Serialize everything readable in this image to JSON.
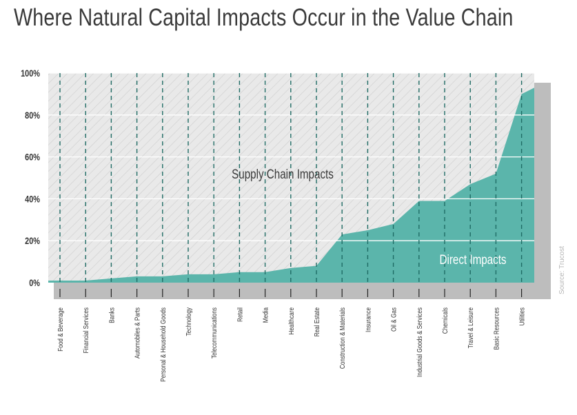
{
  "title": "Where Natural Capital Impacts Occur in the Value Chain",
  "source": "Source: Trucost",
  "colors": {
    "direct": "#5bb5ab",
    "supply": "#e8e8e8",
    "frame": "#bdbdbd",
    "dashed": "#1f6b64"
  },
  "chart_data": {
    "type": "area",
    "title": "Where Natural Capital Impacts Occur in the Value Chain",
    "xlabel": "",
    "ylabel": "",
    "ylim": [
      0,
      100
    ],
    "yticks": [
      "0%",
      "20%",
      "40%",
      "60%",
      "80%",
      "100%"
    ],
    "grid": true,
    "categories": [
      "Food & Beverage",
      "Financial Services",
      "Banks",
      "Automobiles & Parts",
      "Personal & Household Goods",
      "Technology",
      "Telecommunications",
      "Retail",
      "Media",
      "Healthcare",
      "Real Estate",
      "Construction & Materials",
      "Insurance",
      "Oil & Gas",
      "Industrial Goods & Services",
      "Chemicals",
      "Travel & Leisure",
      "Basic Resources",
      "Utilities"
    ],
    "series": [
      {
        "name": "Direct Impacts",
        "values": [
          1,
          1,
          2,
          3,
          3,
          4,
          4,
          5,
          5,
          7,
          8,
          23,
          25,
          28,
          39,
          39,
          47,
          52,
          90
        ]
      }
    ],
    "annotations": [
      "Supply Chain Impacts",
      "Direct Impacts"
    ]
  }
}
